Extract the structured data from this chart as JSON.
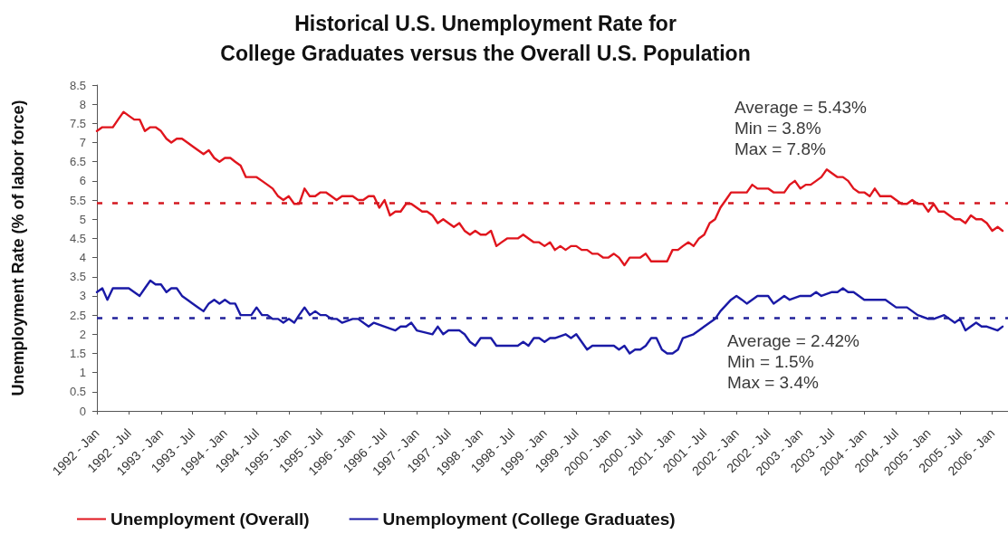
{
  "chart_data": {
    "type": "line",
    "title": "Historical U.S. Unemployment Rate for\nCollege Graduates versus the Overall U.S. Population",
    "ylabel": "Unemployment Rate (% of labor force)",
    "x": [
      "1992-01",
      "1992-02",
      "1992-03",
      "1992-04",
      "1992-05",
      "1992-06",
      "1992-07",
      "1992-08",
      "1992-09",
      "1992-10",
      "1992-11",
      "1992-12",
      "1993-01",
      "1993-02",
      "1993-03",
      "1993-04",
      "1993-05",
      "1993-06",
      "1993-07",
      "1993-08",
      "1993-09",
      "1993-10",
      "1993-11",
      "1993-12",
      "1994-01",
      "1994-02",
      "1994-03",
      "1994-04",
      "1994-05",
      "1994-06",
      "1994-07",
      "1994-08",
      "1994-09",
      "1994-10",
      "1994-11",
      "1994-12",
      "1995-01",
      "1995-02",
      "1995-03",
      "1995-04",
      "1995-05",
      "1995-06",
      "1995-07",
      "1995-08",
      "1995-09",
      "1995-10",
      "1995-11",
      "1995-12",
      "1996-01",
      "1996-02",
      "1996-03",
      "1996-04",
      "1996-05",
      "1996-06",
      "1996-07",
      "1996-08",
      "1996-09",
      "1996-10",
      "1996-11",
      "1996-12",
      "1997-01",
      "1997-02",
      "1997-03",
      "1997-04",
      "1997-05",
      "1997-06",
      "1997-07",
      "1997-08",
      "1997-09",
      "1997-10",
      "1997-11",
      "1997-12",
      "1998-01",
      "1998-02",
      "1998-03",
      "1998-04",
      "1998-05",
      "1998-06",
      "1998-07",
      "1998-08",
      "1998-09",
      "1998-10",
      "1998-11",
      "1998-12",
      "1999-01",
      "1999-02",
      "1999-03",
      "1999-04",
      "1999-05",
      "1999-06",
      "1999-07",
      "1999-08",
      "1999-09",
      "1999-10",
      "1999-11",
      "1999-12",
      "2000-01",
      "2000-02",
      "2000-03",
      "2000-04",
      "2000-05",
      "2000-06",
      "2000-07",
      "2000-08",
      "2000-09",
      "2000-10",
      "2000-11",
      "2000-12",
      "2001-01",
      "2001-02",
      "2001-03",
      "2001-04",
      "2001-05",
      "2001-06",
      "2001-07",
      "2001-08",
      "2001-09",
      "2001-10",
      "2001-11",
      "2001-12",
      "2002-01",
      "2002-02",
      "2002-03",
      "2002-04",
      "2002-05",
      "2002-06",
      "2002-07",
      "2002-08",
      "2002-09",
      "2002-10",
      "2002-11",
      "2002-12",
      "2003-01",
      "2003-02",
      "2003-03",
      "2003-04",
      "2003-05",
      "2003-06",
      "2003-07",
      "2003-08",
      "2003-09",
      "2003-10",
      "2003-11",
      "2003-12",
      "2004-01",
      "2004-02",
      "2004-03",
      "2004-04",
      "2004-05",
      "2004-06",
      "2004-07",
      "2004-08",
      "2004-09",
      "2004-10",
      "2004-11",
      "2004-12",
      "2005-01",
      "2005-02",
      "2005-03",
      "2005-04",
      "2005-05",
      "2005-06",
      "2005-07",
      "2005-08",
      "2005-09",
      "2005-10",
      "2005-11",
      "2005-12",
      "2006-01",
      "2006-02",
      "2006-03"
    ],
    "series": [
      {
        "name": "Unemployment (Overall)",
        "color": "#e0151d",
        "values": [
          7.3,
          7.4,
          7.4,
          7.4,
          7.6,
          7.8,
          7.7,
          7.6,
          7.6,
          7.3,
          7.4,
          7.4,
          7.3,
          7.1,
          7.0,
          7.1,
          7.1,
          7.0,
          6.9,
          6.8,
          6.7,
          6.8,
          6.6,
          6.5,
          6.6,
          6.6,
          6.5,
          6.4,
          6.1,
          6.1,
          6.1,
          6.0,
          5.9,
          5.8,
          5.6,
          5.5,
          5.6,
          5.4,
          5.4,
          5.8,
          5.6,
          5.6,
          5.7,
          5.7,
          5.6,
          5.5,
          5.6,
          5.6,
          5.6,
          5.5,
          5.5,
          5.6,
          5.6,
          5.3,
          5.5,
          5.1,
          5.2,
          5.2,
          5.4,
          5.4,
          5.3,
          5.2,
          5.2,
          5.1,
          4.9,
          5.0,
          4.9,
          4.8,
          4.9,
          4.7,
          4.6,
          4.7,
          4.6,
          4.6,
          4.7,
          4.3,
          4.4,
          4.5,
          4.5,
          4.5,
          4.6,
          4.5,
          4.4,
          4.4,
          4.3,
          4.4,
          4.2,
          4.3,
          4.2,
          4.3,
          4.3,
          4.2,
          4.2,
          4.1,
          4.1,
          4.0,
          4.0,
          4.1,
          4.0,
          3.8,
          4.0,
          4.0,
          4.0,
          4.1,
          3.9,
          3.9,
          3.9,
          3.9,
          4.2,
          4.2,
          4.3,
          4.4,
          4.3,
          4.5,
          4.6,
          4.9,
          5.0,
          5.3,
          5.5,
          5.7,
          5.7,
          5.7,
          5.7,
          5.9,
          5.8,
          5.8,
          5.8,
          5.7,
          5.7,
          5.7,
          5.9,
          6.0,
          5.8,
          5.9,
          5.9,
          6.0,
          6.1,
          6.3,
          6.2,
          6.1,
          6.1,
          6.0,
          5.8,
          5.7,
          5.7,
          5.6,
          5.8,
          5.6,
          5.6,
          5.6,
          5.5,
          5.4,
          5.4,
          5.5,
          5.4,
          5.4,
          5.2,
          5.4,
          5.2,
          5.2,
          5.1,
          5.0,
          5.0,
          4.9,
          5.1,
          5.0,
          5.0,
          4.9,
          4.7,
          4.8,
          4.7
        ]
      },
      {
        "name": "Unemployment (College Graduates)",
        "color": "#1a1aa6",
        "x": [
          "1992-01",
          "1992-02",
          "1992-03",
          "1992-04",
          "1992-07",
          "1992-08",
          "1992-09",
          "1992-10",
          "1992-11",
          "1992-12",
          "1993-01",
          "1993-02",
          "1993-03",
          "1993-04",
          "1993-05",
          "1993-06",
          "1993-07",
          "1993-08",
          "1993-09",
          "1993-10",
          "1993-11",
          "1993-12",
          "1994-01",
          "1994-02",
          "1994-03",
          "1994-04",
          "1994-05",
          "1994-06",
          "1994-07",
          "1994-08",
          "1994-09",
          "1994-10",
          "1994-11",
          "1994-12",
          "1995-01",
          "1995-02",
          "1995-03",
          "1995-04",
          "1995-05",
          "1995-06",
          "1995-07",
          "1995-08",
          "1995-09",
          "1995-10",
          "1995-11",
          "1996-01",
          "1996-02",
          "1996-04",
          "1996-05",
          "1996-07",
          "1996-09",
          "1996-10",
          "1996-11",
          "1996-12",
          "1997-01",
          "1997-04",
          "1997-05",
          "1997-06",
          "1997-07",
          "1997-09",
          "1997-10",
          "1997-11",
          "1997-12",
          "1998-01",
          "1998-03",
          "1998-04",
          "1998-08",
          "1998-09",
          "1998-10",
          "1998-11",
          "1998-12",
          "1999-01",
          "1999-02",
          "1999-03",
          "1999-05",
          "1999-06",
          "1999-07",
          "1999-09",
          "1999-10",
          "2000-01",
          "2000-02",
          "2000-03",
          "2000-04",
          "2000-05",
          "2000-06",
          "2000-07",
          "2000-08",
          "2000-09",
          "2000-10",
          "2000-11",
          "2000-12",
          "2001-01",
          "2001-02",
          "2001-03",
          "2001-05",
          "2001-06",
          "2001-07",
          "2001-09",
          "2001-10",
          "2001-12",
          "2002-01",
          "2002-02",
          "2002-03",
          "2002-05",
          "2002-07",
          "2002-08",
          "2002-09",
          "2002-10",
          "2002-11",
          "2003-01",
          "2003-03",
          "2003-04",
          "2003-05",
          "2003-07",
          "2003-08",
          "2003-09",
          "2003-10",
          "2003-11",
          "2004-01",
          "2004-05",
          "2004-07",
          "2004-09",
          "2004-11",
          "2005-01",
          "2005-02",
          "2005-04",
          "2005-06",
          "2005-07",
          "2005-08",
          "2005-10",
          "2005-11",
          "2005-12",
          "2006-02",
          "2006-03"
        ],
        "values": [
          3.1,
          3.2,
          2.9,
          3.2,
          3.2,
          3.1,
          3.0,
          3.2,
          3.4,
          3.3,
          3.3,
          3.1,
          3.2,
          3.2,
          3.0,
          2.9,
          2.8,
          2.7,
          2.6,
          2.8,
          2.9,
          2.8,
          2.9,
          2.8,
          2.8,
          2.5,
          2.5,
          2.5,
          2.7,
          2.5,
          2.5,
          2.4,
          2.4,
          2.3,
          2.4,
          2.3,
          2.5,
          2.7,
          2.5,
          2.6,
          2.5,
          2.5,
          2.4,
          2.4,
          2.3,
          2.4,
          2.4,
          2.2,
          2.3,
          2.2,
          2.1,
          2.2,
          2.2,
          2.3,
          2.1,
          2.0,
          2.2,
          2.0,
          2.1,
          2.1,
          2.0,
          1.8,
          1.7,
          1.9,
          1.9,
          1.7,
          1.7,
          1.8,
          1.7,
          1.9,
          1.9,
          1.8,
          1.9,
          1.9,
          2.0,
          1.9,
          2.0,
          1.6,
          1.7,
          1.7,
          1.7,
          1.6,
          1.7,
          1.5,
          1.6,
          1.6,
          1.7,
          1.9,
          1.9,
          1.6,
          1.5,
          1.5,
          1.6,
          1.9,
          2.0,
          2.1,
          2.2,
          2.4,
          2.6,
          2.9,
          3.0,
          2.9,
          2.8,
          3.0,
          3.0,
          2.8,
          2.9,
          3.0,
          2.9,
          3.0,
          3.0,
          3.1,
          3.0,
          3.1,
          3.1,
          3.2,
          3.1,
          3.1,
          2.9,
          2.9,
          2.7,
          2.7,
          2.5,
          2.4,
          2.4,
          2.5,
          2.3,
          2.4,
          2.1,
          2.3,
          2.2,
          2.2,
          2.1,
          2.2
        ]
      }
    ],
    "xlim": [
      "1992-01",
      "2006-04"
    ],
    "xticks": [
      {
        "value": "1992-01",
        "label": "1992 - Jan"
      },
      {
        "value": "1992-07",
        "label": "1992 - Jul"
      },
      {
        "value": "1993-01",
        "label": "1993 - Jan"
      },
      {
        "value": "1993-07",
        "label": "1993 - Jul"
      },
      {
        "value": "1994-01",
        "label": "1994 - Jan"
      },
      {
        "value": "1994-07",
        "label": "1994 - Jul"
      },
      {
        "value": "1995-01",
        "label": "1995 - Jan"
      },
      {
        "value": "1995-07",
        "label": "1995 - Jul"
      },
      {
        "value": "1996-01",
        "label": "1996 - Jan"
      },
      {
        "value": "1996-07",
        "label": "1996 - Jul"
      },
      {
        "value": "1997-01",
        "label": "1997 - Jan"
      },
      {
        "value": "1997-07",
        "label": "1997 - Jul"
      },
      {
        "value": "1998-01",
        "label": "1998 - Jan"
      },
      {
        "value": "1998-07",
        "label": "1998 - Jul"
      },
      {
        "value": "1999-01",
        "label": "1999 - Jan"
      },
      {
        "value": "1999-07",
        "label": "1999 - Jul"
      },
      {
        "value": "2000-01",
        "label": "2000 - Jan"
      },
      {
        "value": "2000-07",
        "label": "2000 - Jul"
      },
      {
        "value": "2001-01",
        "label": "2001 - Jan"
      },
      {
        "value": "2001-07",
        "label": "2001 - Jul"
      },
      {
        "value": "2002-01",
        "label": "2002 - Jan"
      },
      {
        "value": "2002-07",
        "label": "2002 - Jul"
      },
      {
        "value": "2003-01",
        "label": "2003 - Jan"
      },
      {
        "value": "2003-07",
        "label": "2003 - Jul"
      },
      {
        "value": "2004-01",
        "label": "2004 - Jan"
      },
      {
        "value": "2004-07",
        "label": "2004 - Jul"
      },
      {
        "value": "2005-01",
        "label": "2005 - Jan"
      },
      {
        "value": "2005-07",
        "label": "2005 - Jul"
      },
      {
        "value": "2006-01",
        "label": "2006 - Jan"
      }
    ],
    "ylim": [
      0,
      8.5
    ],
    "yticks": [
      0,
      0.5,
      1,
      1.5,
      2,
      2.5,
      3,
      3.5,
      4,
      4.5,
      5,
      5.5,
      6,
      6.5,
      7,
      7.5,
      8,
      8.5
    ],
    "ref_lines": [
      {
        "axis": "y",
        "value": 5.43,
        "color": "#d41820",
        "line_style": "dashed"
      },
      {
        "axis": "y",
        "value": 2.42,
        "color": "#22229a",
        "line_style": "dashed"
      }
    ],
    "annotations": [
      "Average = 5.43%",
      "Min = 3.8%",
      "Max = 7.8%",
      "Average = 2.42%",
      "Min = 1.5%",
      "Max = 3.4%"
    ],
    "grid": false,
    "legend": "bottom left",
    "marker": "none",
    "line_style": "solid"
  }
}
